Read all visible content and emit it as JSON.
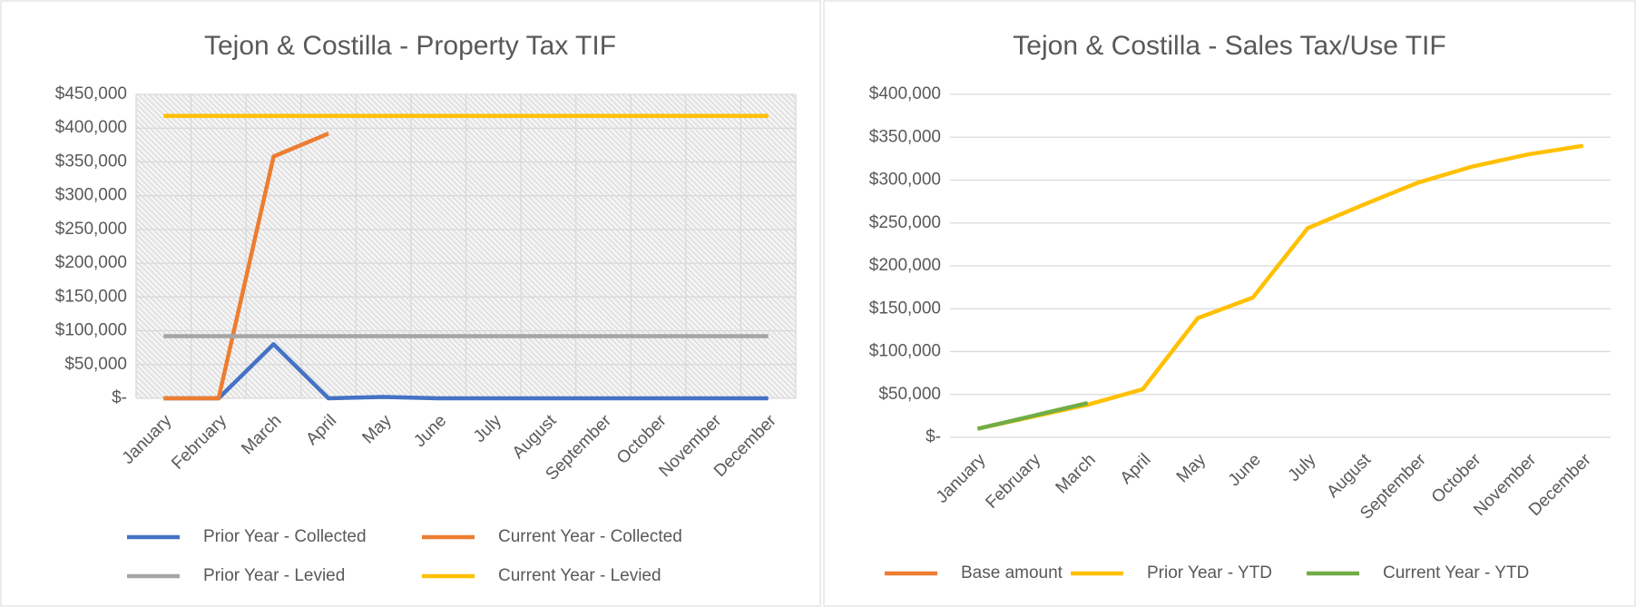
{
  "chart_data": [
    {
      "type": "line",
      "title": "Tejon & Costilla - Property Tax TIF",
      "categories": [
        "January",
        "February",
        "March",
        "April",
        "May",
        "June",
        "July",
        "August",
        "September",
        "October",
        "November",
        "December"
      ],
      "series": [
        {
          "name": "Prior Year - Collected",
          "color": "#4472c4",
          "values": [
            0,
            0,
            80000,
            0,
            2000,
            0,
            0,
            0,
            0,
            0,
            0,
            0
          ]
        },
        {
          "name": "Current Year - Collected",
          "color": "#ed7d31",
          "values": [
            0,
            0,
            358000,
            392000,
            null,
            null,
            null,
            null,
            null,
            null,
            null,
            null
          ]
        },
        {
          "name": "Prior Year - Levied",
          "color": "#a5a5a5",
          "values": [
            92000,
            92000,
            92000,
            92000,
            92000,
            92000,
            92000,
            92000,
            92000,
            92000,
            92000,
            92000
          ]
        },
        {
          "name": "Current Year - Levied",
          "color": "#ffc000",
          "values": [
            418000,
            418000,
            418000,
            418000,
            418000,
            418000,
            418000,
            418000,
            418000,
            418000,
            418000,
            418000
          ]
        }
      ],
      "ylim": [
        0,
        450000
      ],
      "yticks": [
        {
          "value": 0,
          "label": "$-"
        },
        {
          "value": 50000,
          "label": "$50,000"
        },
        {
          "value": 100000,
          "label": "$100,000"
        },
        {
          "value": 150000,
          "label": "$150,000"
        },
        {
          "value": 200000,
          "label": "$200,000"
        },
        {
          "value": 250000,
          "label": "$250,000"
        },
        {
          "value": 300000,
          "label": "$300,000"
        },
        {
          "value": 350000,
          "label": "$350,000"
        },
        {
          "value": 400000,
          "label": "$400,000"
        },
        {
          "value": 450000,
          "label": "$450,000"
        }
      ],
      "grid": true,
      "xgrid": true,
      "legend": "bottom"
    },
    {
      "type": "line",
      "title": "Tejon & Costilla - Sales Tax/Use TIF",
      "categories": [
        "January",
        "February",
        "March",
        "April",
        "May",
        "June",
        "July",
        "August",
        "September",
        "October",
        "November",
        "December"
      ],
      "series": [
        {
          "name": "Base amount",
          "color": "#ed7d31",
          "values": [
            null,
            null,
            null,
            null,
            null,
            null,
            null,
            null,
            null,
            null,
            null,
            null
          ]
        },
        {
          "name": "Prior Year - YTD",
          "color": "#ffc000",
          "values": [
            10000,
            24000,
            38000,
            56000,
            139000,
            163000,
            244000,
            271000,
            297000,
            316000,
            330000,
            340000
          ]
        },
        {
          "name": "Current Year - YTD",
          "color": "#70ad47",
          "values": [
            10000,
            25000,
            40000,
            null,
            null,
            null,
            null,
            null,
            null,
            null,
            null,
            null
          ]
        }
      ],
      "ylim": [
        0,
        400000
      ],
      "yticks": [
        {
          "value": 0,
          "label": "$-"
        },
        {
          "value": 50000,
          "label": "$50,000"
        },
        {
          "value": 100000,
          "label": "$100,000"
        },
        {
          "value": 150000,
          "label": "$150,000"
        },
        {
          "value": 200000,
          "label": "$200,000"
        },
        {
          "value": 250000,
          "label": "$250,000"
        },
        {
          "value": 300000,
          "label": "$300,000"
        },
        {
          "value": 350000,
          "label": "$350,000"
        },
        {
          "value": 400000,
          "label": "$400,000"
        }
      ],
      "grid": true,
      "xgrid": false,
      "legend": "bottom"
    }
  ]
}
